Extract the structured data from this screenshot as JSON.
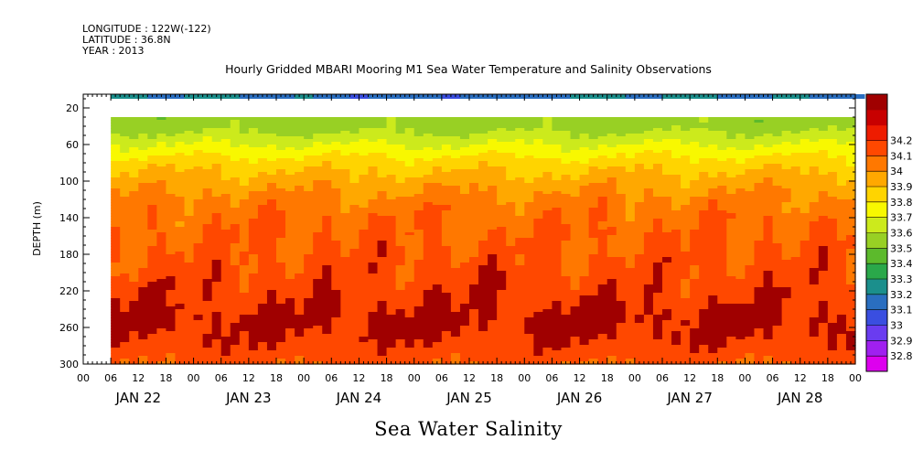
{
  "header": {
    "longitude": "LONGITUDE : 122W(-122)",
    "latitude": "LATITUDE : 36.8N",
    "year": "YEAR : 2013"
  },
  "chart_data": {
    "type": "heatmap",
    "title": "Hourly Gridded MBARI Mooring M1 Sea Water Temperature and Salinity Observations",
    "ylabel": "DEPTH (m)",
    "xlabel": "Sea Water Salinity",
    "y_ticks": [
      20,
      60,
      100,
      140,
      180,
      220,
      260,
      300
    ],
    "ylim": [
      300,
      5
    ],
    "x_hour_ticks": [
      "00",
      "06",
      "12",
      "18",
      "00",
      "06",
      "12",
      "18",
      "00",
      "06",
      "12",
      "18",
      "00",
      "06",
      "12",
      "18",
      "00",
      "06",
      "12",
      "18",
      "00",
      "06",
      "12",
      "18",
      "00",
      "06",
      "12",
      "18",
      "00"
    ],
    "x_day_labels": [
      "JAN 22",
      "JAN 23",
      "JAN 24",
      "JAN 25",
      "JAN 26",
      "JAN 27",
      "JAN 28"
    ],
    "data_start_hour": 6,
    "total_hours": 168,
    "colorbar": {
      "levels": [
        32.8,
        32.9,
        33,
        33.1,
        33.2,
        33.3,
        33.4,
        33.5,
        33.6,
        33.7,
        33.8,
        33.9,
        34,
        34.1,
        34.2
      ],
      "labels": [
        "32.8",
        "32.9",
        "33",
        "33.1",
        "33.2",
        "33.3",
        "33.4",
        "33.5",
        "33.6",
        "33.7",
        "33.8",
        "33.9",
        "34",
        "34.1",
        "34.2"
      ],
      "colors": [
        "#dd00ee",
        "#a020f0",
        "#6a3cf0",
        "#3a4ee0",
        "#2a6ec0",
        "#1b8f8c",
        "#2aa84a",
        "#5cba2c",
        "#98d024",
        "#ccea1c",
        "#f8f800",
        "#ffd400",
        "#ffa800",
        "#ff7800",
        "#ff4800",
        "#ee1c00",
        "#c80000",
        "#a00000"
      ]
    },
    "depth_profile": [
      {
        "depth": 40,
        "salinity": 33.55
      },
      {
        "depth": 60,
        "salinity": 33.7
      },
      {
        "depth": 80,
        "salinity": 33.85
      },
      {
        "depth": 100,
        "salinity": 33.95
      },
      {
        "depth": 120,
        "salinity": 34.03
      },
      {
        "depth": 140,
        "salinity": 34.08
      },
      {
        "depth": 180,
        "salinity": 34.12
      },
      {
        "depth": 220,
        "salinity": 34.17
      },
      {
        "depth": 250,
        "salinity": 34.22
      },
      {
        "depth": 270,
        "salinity": 34.2
      },
      {
        "depth": 300,
        "salinity": 34.12
      }
    ],
    "surface_band": {
      "depth_top": 5,
      "depth_bottom": 10,
      "salinity": 33.2
    },
    "gap_depths": [
      10,
      30
    ]
  }
}
